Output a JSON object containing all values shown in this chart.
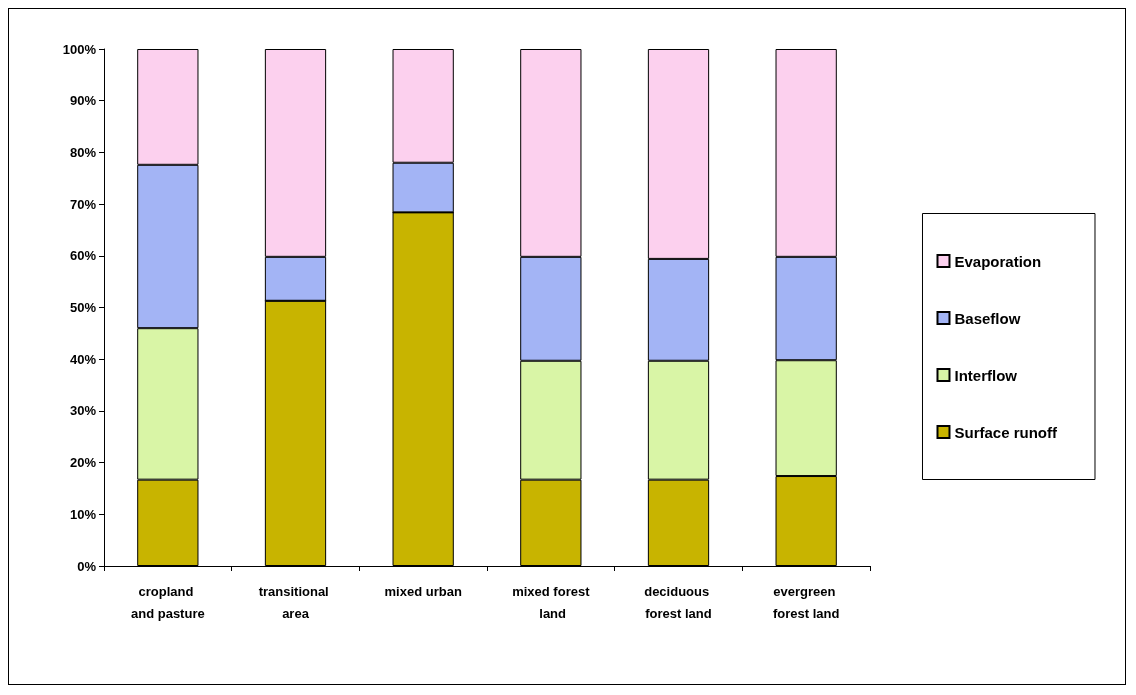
{
  "chart_data": {
    "type": "bar",
    "stacked": true,
    "categories": [
      "cropland and pasture",
      "transitional area",
      "mixed urban",
      "mixed forest land",
      "deciduous forest land",
      "evergreen forest land"
    ],
    "series": [
      {
        "name": "Surface runoff",
        "color": "#c8b400",
        "values": [
          16.7,
          51.3,
          68.4,
          16.7,
          16.7,
          17.4
        ]
      },
      {
        "name": "Interflow",
        "color": "#d9f5a6",
        "values": [
          29.3,
          0,
          0,
          23.0,
          23.0,
          22.4
        ]
      },
      {
        "name": "Baseflow",
        "color": "#a3b4f5",
        "values": [
          31.6,
          8.5,
          9.6,
          20.1,
          19.7,
          20.0
        ]
      },
      {
        "name": "Evaporation",
        "color": "#fcd0ee",
        "values": [
          22.4,
          40.2,
          22.0,
          40.2,
          40.6,
          40.2
        ]
      }
    ],
    "ylim": [
      0,
      100
    ],
    "yticks": [
      {
        "value": 0,
        "label": "0%"
      },
      {
        "value": 10,
        "label": "10%"
      },
      {
        "value": 20,
        "label": "20%"
      },
      {
        "value": 30,
        "label": "30%"
      },
      {
        "value": 40,
        "label": "40%"
      },
      {
        "value": 50,
        "label": "50%"
      },
      {
        "value": 60,
        "label": "60%"
      },
      {
        "value": 70,
        "label": "70%"
      },
      {
        "value": 80,
        "label": "80%"
      },
      {
        "value": 90,
        "label": "90%"
      },
      {
        "value": 100,
        "label": "100%"
      }
    ],
    "grid": false,
    "legend": "right"
  }
}
